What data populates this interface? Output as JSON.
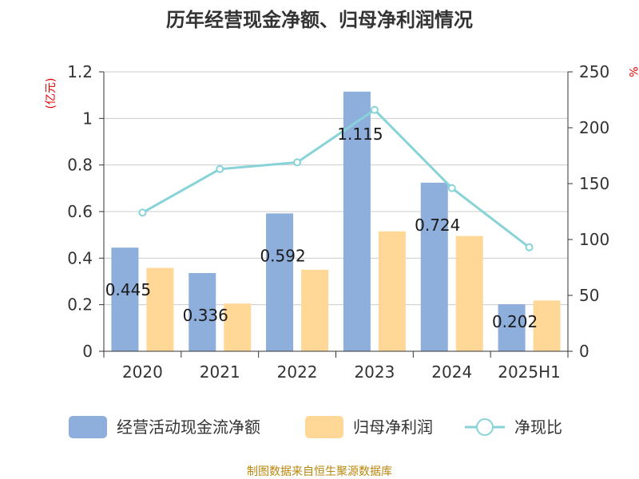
{
  "chart_data": {
    "type": "bar",
    "title": "历年经营现金净额、归母净利润情况",
    "categories": [
      "2020",
      "2021",
      "2022",
      "2023",
      "2024",
      "2025H1"
    ],
    "series": [
      {
        "name": "经营活动现金流净额",
        "type": "bar",
        "axis": "left",
        "values": [
          0.445,
          0.336,
          0.592,
          1.115,
          0.724,
          0.202
        ],
        "color": "#8eaedc"
      },
      {
        "name": "归母净利润",
        "type": "bar",
        "axis": "left",
        "values": [
          0.358,
          0.205,
          0.35,
          0.515,
          0.495,
          0.218
        ],
        "color": "#ffd898"
      },
      {
        "name": "净现比",
        "type": "line",
        "axis": "right",
        "values": [
          124,
          163,
          169,
          216,
          146,
          93
        ],
        "color": "#88d3d8"
      }
    ],
    "data_labels": [
      "0.445",
      "0.336",
      "0.592",
      "1.115",
      "0.724",
      "0.202"
    ],
    "y_left": {
      "label": "(亿元)",
      "ylim": [
        0,
        1.2
      ],
      "ticks": [
        "0",
        "0.2",
        "0.4",
        "0.6",
        "0.8",
        "1",
        "1.2"
      ]
    },
    "y_right": {
      "label": "%",
      "ylim": [
        0,
        250
      ],
      "ticks": [
        "0",
        "50",
        "100",
        "150",
        "200",
        "250"
      ]
    },
    "grid": true,
    "legend_position": "bottom",
    "source": "制图数据来自恒生聚源数据库"
  }
}
